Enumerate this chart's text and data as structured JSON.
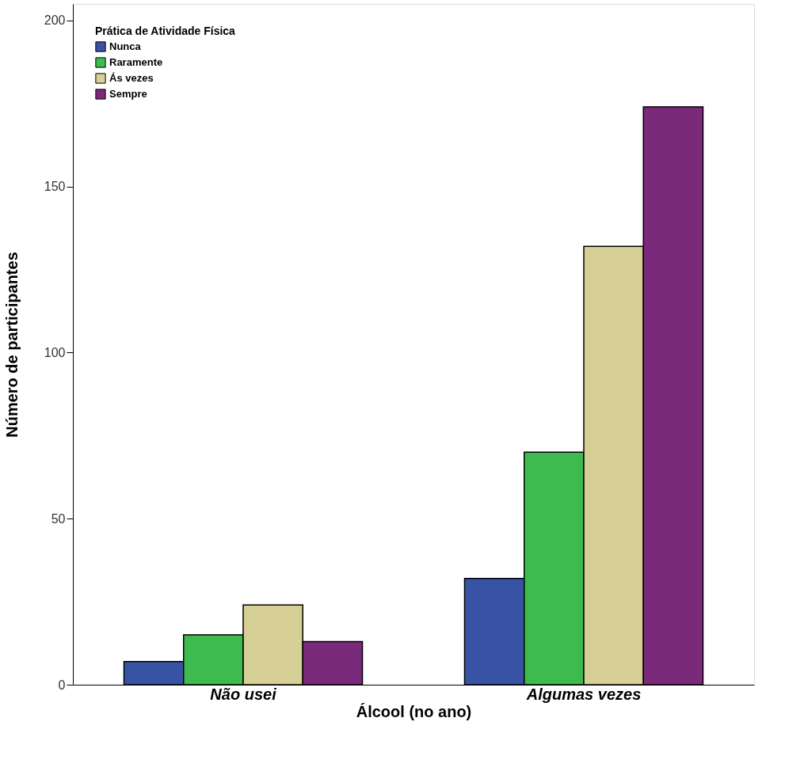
{
  "chart_data": {
    "type": "bar",
    "xlabel": "Álcool (no ano)",
    "ylabel": "Número de participantes",
    "legend_title": "Prática de Atividade Física",
    "categories": [
      "Não usei",
      "Algumas vezes"
    ],
    "series": [
      {
        "name": "Nunca",
        "color": "#3953a4",
        "values": [
          7,
          32
        ]
      },
      {
        "name": "Raramente",
        "color": "#3dbb4f",
        "values": [
          15,
          70
        ]
      },
      {
        "name": "Ás vezes",
        "color": "#d6cf96",
        "values": [
          24,
          132
        ]
      },
      {
        "name": "Sempre",
        "color": "#7b2a7b",
        "values": [
          13,
          174
        ]
      }
    ],
    "ylim": [
      0,
      205
    ],
    "yticks": [
      0,
      50,
      100,
      150,
      200
    ],
    "grid": false,
    "legend": "top left"
  }
}
